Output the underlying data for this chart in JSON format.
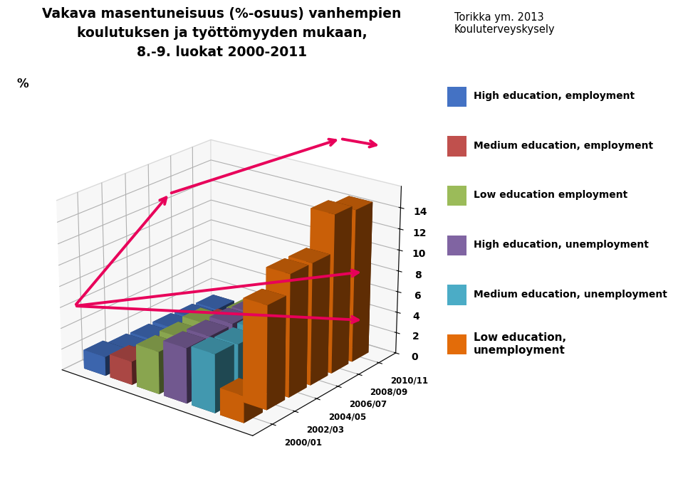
{
  "title_line1": "Vakava masentuneisuus (%-osuus) vanhempien",
  "title_line2": "koulutuksen ja työttömyyden mukaan,",
  "title_line3": "8.-9. luokat 2000-2011",
  "source_text": "Torikka ym. 2013\nKouluterveyskysely",
  "percent_label": "%",
  "years": [
    "2000/01",
    "2002/03",
    "2004/05",
    "2006/07",
    "2008/09",
    "2010/11"
  ],
  "series": [
    {
      "label": "High education, employment",
      "color": "#4472C4",
      "values": [
        1.8,
        1.4,
        1.3,
        1.3,
        1.2,
        1.1
      ]
    },
    {
      "label": "Medium education, employment",
      "color": "#C0504D",
      "values": [
        2.2,
        1.8,
        1.7,
        1.6,
        1.5,
        1.0
      ]
    },
    {
      "label": "Low education employment",
      "color": "#9BBB59",
      "values": [
        4.0,
        4.2,
        4.5,
        3.2,
        3.3,
        3.0
      ]
    },
    {
      "label": "High education, unemployment",
      "color": "#8064A2",
      "values": [
        5.2,
        5.2,
        5.3,
        5.2,
        5.1,
        3.0
      ]
    },
    {
      "label": "Medium education, unemployment",
      "color": "#4BACC6",
      "values": [
        5.5,
        5.3,
        5.5,
        5.8,
        6.0,
        4.2
      ]
    },
    {
      "label": "Low education,\nunemployment",
      "color": "#E36C09",
      "values": [
        2.5,
        9.7,
        11.5,
        11.5,
        15.0,
        14.5
      ]
    }
  ],
  "legend_labels": [
    "High education, employment",
    "Medium education, employment",
    "Low education employment",
    "High education, unemployment",
    "Medium education, unemployment",
    "Low education,\nunemployment"
  ],
  "legend_colors": [
    "#4472C4",
    "#C0504D",
    "#9BBB59",
    "#8064A2",
    "#4BACC6",
    "#E36C09"
  ],
  "legend_bold": [
    false,
    false,
    false,
    false,
    false,
    true
  ],
  "ylim": [
    0,
    16
  ],
  "yticks": [
    0,
    2,
    4,
    6,
    8,
    10,
    12,
    14
  ],
  "arrow_color": "#E8005A",
  "background_color": "#FFFFFF",
  "elev": 22,
  "azim": -52
}
